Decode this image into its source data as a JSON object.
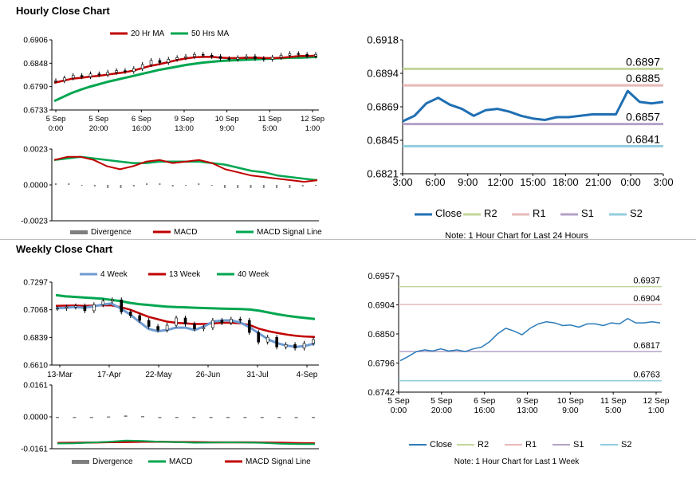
{
  "sections": {
    "hourly_title": "Hourly Close Chart",
    "weekly_title": "Weekly Close Chart"
  },
  "colors": {
    "close_dark": "#1f6fb3",
    "close_light": "#2b7bba",
    "ma_red": "#c00000",
    "ma_green": "#00a650",
    "r2": "#c3d69b",
    "r1": "#e6b9b8",
    "s1": "#b3a2c7",
    "s2": "#93cddd",
    "week4": "#6f9bd1",
    "divergence": "#7f7f7f"
  },
  "chart_data": [
    {
      "id": "hourly_price",
      "type": "line",
      "legend": [
        "20 Hr MA",
        "50 Hrs MA"
      ],
      "ylim": [
        0.6733,
        0.6906
      ],
      "yticks": [
        "0.6906",
        "0.6848",
        "0.6790",
        "0.6733"
      ],
      "xticks": [
        [
          "5 Sep",
          "0:00"
        ],
        [
          "5 Sep",
          "20:00"
        ],
        [
          "6 Sep",
          "16:00"
        ],
        [
          "9 Sep",
          "13:00"
        ],
        [
          "10 Sep",
          "9:00"
        ],
        [
          "11 Sep",
          "5:00"
        ],
        [
          "12 Sep",
          "1:00"
        ]
      ],
      "close": [
        0.6805,
        0.6812,
        0.6818,
        0.6815,
        0.6822,
        0.682,
        0.6826,
        0.683,
        0.6828,
        0.6835,
        0.6845,
        0.6855,
        0.685,
        0.6858,
        0.6862,
        0.6865,
        0.687,
        0.6868,
        0.6865,
        0.686,
        0.6858,
        0.6862,
        0.6865,
        0.686,
        0.6858,
        0.6863,
        0.6868,
        0.6872,
        0.687,
        0.6866,
        0.687
      ],
      "ma20": [
        0.68,
        0.6805,
        0.681,
        0.6812,
        0.6815,
        0.6817,
        0.682,
        0.6823,
        0.6826,
        0.683,
        0.6836,
        0.6842,
        0.6846,
        0.6851,
        0.6856,
        0.686,
        0.6863,
        0.6864,
        0.6864,
        0.6862,
        0.6861,
        0.6861,
        0.6862,
        0.6862,
        0.6861,
        0.6861,
        0.6862,
        0.6864,
        0.6866,
        0.6866,
        0.6867
      ],
      "ma50": [
        0.6755,
        0.6765,
        0.6775,
        0.6783,
        0.679,
        0.6796,
        0.6802,
        0.6807,
        0.6812,
        0.6817,
        0.6822,
        0.6827,
        0.6832,
        0.6836,
        0.684,
        0.6844,
        0.6847,
        0.685,
        0.6852,
        0.6854,
        0.6855,
        0.6856,
        0.6857,
        0.6858,
        0.6859,
        0.686,
        0.6861,
        0.6862,
        0.6862,
        0.6863,
        0.6864
      ]
    },
    {
      "id": "hourly_macd",
      "type": "line",
      "legend": [
        "Divergence",
        "MACD",
        "MACD Signal Line"
      ],
      "ylim": [
        -0.0023,
        0.0023
      ],
      "yticks": [
        "0.0023",
        "0.0000",
        "-0.0023"
      ],
      "macd": [
        0.0016,
        0.0018,
        0.0018,
        0.0016,
        0.0012,
        0.001,
        0.0012,
        0.0015,
        0.0016,
        0.0014,
        0.0015,
        0.0016,
        0.0014,
        0.001,
        0.0008,
        0.0006,
        0.0005,
        0.0004,
        0.0003,
        0.0002,
        0.0003
      ],
      "signal": [
        0.0016,
        0.0017,
        0.0018,
        0.0017,
        0.0016,
        0.0015,
        0.0014,
        0.0014,
        0.0015,
        0.0015,
        0.0015,
        0.0015,
        0.0014,
        0.0013,
        0.0011,
        0.0009,
        0.0008,
        0.0006,
        0.0005,
        0.0004,
        0.0003
      ],
      "divergence": [
        0.0001,
        0.0001,
        0.0,
        -0.0001,
        -0.0002,
        -0.0002,
        -0.0001,
        0.0001,
        0.0001,
        -0.0001,
        0.0,
        0.0001,
        0.0,
        -0.0002,
        -0.0002,
        -0.0002,
        -0.0002,
        -0.0002,
        -0.0002,
        -0.0001,
        0.0
      ]
    },
    {
      "id": "hourly_24h",
      "type": "line",
      "legend": [
        "Close",
        "R2",
        "R1",
        "S1",
        "S2"
      ],
      "ylim": [
        0.6821,
        0.6918
      ],
      "yticks": [
        "0.6918",
        "0.6894",
        "0.6869",
        "0.6845",
        "0.6821"
      ],
      "xticks": [
        "3:00",
        "6:00",
        "9:00",
        "12:00",
        "15:00",
        "18:00",
        "21:00",
        "0:00",
        "3:00"
      ],
      "levels": {
        "R2": 0.6897,
        "R1": 0.6885,
        "S1": 0.6857,
        "S2": 0.6841
      },
      "level_labels": {
        "R2": "0.6897",
        "R1": "0.6885",
        "S1": "0.6857",
        "S2": "0.6841"
      },
      "close": [
        0.6859,
        0.6863,
        0.6872,
        0.6876,
        0.6871,
        0.6868,
        0.6863,
        0.6867,
        0.6868,
        0.6866,
        0.6863,
        0.6861,
        0.686,
        0.6862,
        0.6862,
        0.6863,
        0.6864,
        0.6864,
        0.6864,
        0.6881,
        0.6873,
        0.6872,
        0.6873
      ],
      "note": "Note: 1 Hour Chart for Last 24 Hours"
    },
    {
      "id": "weekly_price",
      "type": "line",
      "legend": [
        "4 Week",
        "13 Week",
        "40 Week"
      ],
      "ylim": [
        0.661,
        0.7297
      ],
      "yticks": [
        "0.7297",
        "0.7068",
        "0.6839",
        "0.6610"
      ],
      "xticks": [
        "13-Mar",
        "17-Apr",
        "22-May",
        "26-Jun",
        "31-Jul",
        "4-Sep"
      ],
      "close": [
        0.708,
        0.709,
        0.71,
        0.706,
        0.711,
        0.714,
        0.715,
        0.705,
        0.702,
        0.698,
        0.693,
        0.69,
        0.694,
        0.7,
        0.695,
        0.691,
        0.692,
        0.698,
        0.696,
        0.699,
        0.698,
        0.688,
        0.68,
        0.684,
        0.676,
        0.678,
        0.675,
        0.679,
        0.682
      ],
      "w4": [
        0.708,
        0.7085,
        0.709,
        0.7085,
        0.7095,
        0.711,
        0.712,
        0.708,
        0.703,
        0.697,
        0.691,
        0.689,
        0.69,
        0.692,
        0.692,
        0.69,
        0.693,
        0.697,
        0.698,
        0.698,
        0.696,
        0.692,
        0.687,
        0.682,
        0.679,
        0.677,
        0.676,
        0.677,
        0.679
      ],
      "w13": [
        0.71,
        0.7102,
        0.7103,
        0.71,
        0.7102,
        0.7105,
        0.7105,
        0.709,
        0.707,
        0.704,
        0.701,
        0.699,
        0.697,
        0.696,
        0.6955,
        0.695,
        0.695,
        0.6955,
        0.696,
        0.696,
        0.6955,
        0.694,
        0.691,
        0.689,
        0.6875,
        0.6862,
        0.6852,
        0.6846,
        0.6843
      ],
      "w40": [
        0.719,
        0.718,
        0.7175,
        0.717,
        0.7165,
        0.716,
        0.715,
        0.714,
        0.7125,
        0.7115,
        0.7108,
        0.71,
        0.7094,
        0.709,
        0.7088,
        0.7085,
        0.7082,
        0.708,
        0.7078,
        0.7076,
        0.7074,
        0.707,
        0.706,
        0.7045,
        0.703,
        0.7018,
        0.7008,
        0.7,
        0.6992
      ]
    },
    {
      "id": "weekly_macd",
      "type": "line",
      "legend": [
        "Divergence",
        "MACD",
        "MACD Signal Line"
      ],
      "ylim": [
        -0.0161,
        0.0161
      ],
      "yticks": [
        "0.0161",
        "0.0000",
        "-0.0161"
      ],
      "macd": [
        -0.0135,
        -0.0134,
        -0.013,
        -0.0126,
        -0.012,
        -0.0122,
        -0.0126,
        -0.0128,
        -0.0131,
        -0.013,
        -0.0129,
        -0.013,
        -0.0132,
        -0.0136,
        -0.0138,
        -0.0138
      ],
      "signal": [
        -0.0132,
        -0.0131,
        -0.013,
        -0.0128,
        -0.0127,
        -0.0126,
        -0.0126,
        -0.0127,
        -0.0128,
        -0.0129,
        -0.0129,
        -0.0129,
        -0.013,
        -0.0131,
        -0.0133,
        -0.0134
      ],
      "divergence": [
        -0.0003,
        -0.0003,
        0.0,
        0.0002,
        0.0007,
        0.0004,
        0.0,
        -0.0001,
        -0.0003,
        -0.0001,
        0.0,
        -0.0001,
        -0.0002,
        -0.0005,
        -0.0005,
        -0.0004
      ]
    },
    {
      "id": "weekly_hourly",
      "type": "line",
      "legend": [
        "Close",
        "R2",
        "R1",
        "S1",
        "S2"
      ],
      "ylim": [
        0.6742,
        0.6957
      ],
      "yticks": [
        "0.6957",
        "0.6904",
        "0.6850",
        "0.6796",
        "0.6742"
      ],
      "xticks": [
        [
          "5 Sep",
          "0:00"
        ],
        [
          "5 Sep",
          "20:00"
        ],
        [
          "6 Sep",
          "16:00"
        ],
        [
          "9 Sep",
          "13:00"
        ],
        [
          "10 Sep",
          "9:00"
        ],
        [
          "11 Sep",
          "5:00"
        ],
        [
          "12 Sep",
          "1:00"
        ]
      ],
      "levels": {
        "R2": 0.6937,
        "R1": 0.6904,
        "S1": 0.6817,
        "S2": 0.6763
      },
      "level_labels": {
        "R2": "0.6937",
        "R1": "0.6904",
        "S1": "0.6817",
        "S2": "0.6763"
      },
      "close": [
        0.68,
        0.6808,
        0.6817,
        0.682,
        0.6818,
        0.6822,
        0.6818,
        0.682,
        0.6817,
        0.6822,
        0.6825,
        0.6835,
        0.685,
        0.686,
        0.6855,
        0.6848,
        0.686,
        0.6868,
        0.6872,
        0.687,
        0.6865,
        0.6866,
        0.6862,
        0.6868,
        0.6868,
        0.6865,
        0.687,
        0.6868,
        0.6878,
        0.687,
        0.687,
        0.6872,
        0.687
      ],
      "note": "Note: 1 Hour Chart for Last 1 Week"
    }
  ]
}
